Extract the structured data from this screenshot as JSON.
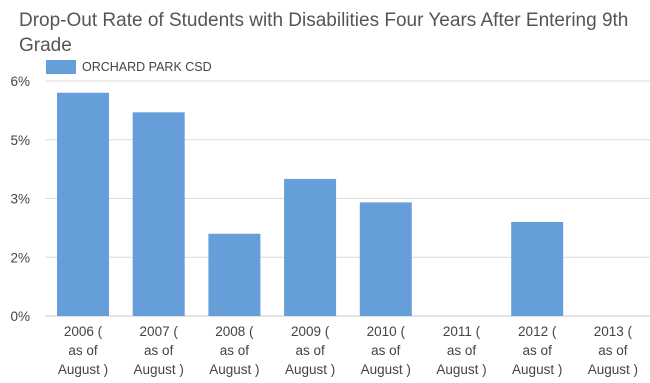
{
  "chart_data": {
    "type": "bar",
    "title": "Drop-Out Rate of Students with Disabilities Four Years After Entering 9th Grade",
    "xlabel": "",
    "ylabel": "",
    "y_ticks": [
      "0%",
      "2%",
      "3%",
      "5%",
      "6%"
    ],
    "y_tick_values": [
      0,
      1.5,
      3,
      4.5,
      6
    ],
    "ylim": [
      0,
      6
    ],
    "grid": true,
    "legend_position": "top-left",
    "categories": [
      [
        "2006 (",
        "as of",
        "August )"
      ],
      [
        "2007 (",
        "as of",
        "August )"
      ],
      [
        "2008 (",
        "as of",
        "August )"
      ],
      [
        "2009 (",
        "as of",
        "August )"
      ],
      [
        "2010 (",
        "as of",
        "August )"
      ],
      [
        "2011 (",
        "as of",
        "August )"
      ],
      [
        "2012 (",
        "as of",
        "August )"
      ],
      [
        "2013 (",
        "as of",
        "August )"
      ]
    ],
    "series": [
      {
        "name": "ORCHARD PARK CSD",
        "color": "#659ed8",
        "values": [
          5.7,
          5.2,
          2.1,
          3.5,
          2.9,
          null,
          2.4,
          null
        ]
      }
    ]
  }
}
